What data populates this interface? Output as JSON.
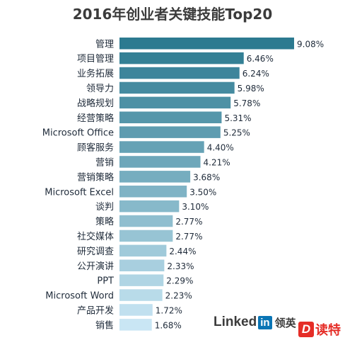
{
  "chart_data": {
    "type": "bar",
    "orientation": "horizontal",
    "title": "2016年创业者关键技能Top20",
    "categories": [
      "管理",
      "项目管理",
      "业务拓展",
      "领导力",
      "战略规划",
      "经营策略",
      "Microsoft Office",
      "顾客服务",
      "营销",
      "营销策略",
      "Microsoft Excel",
      "谈判",
      "策略",
      "社交媒体",
      "研究调查",
      "公开演讲",
      "PPT",
      "Microsoft Word",
      "产品开发",
      "销售"
    ],
    "values": [
      9.08,
      6.46,
      6.24,
      5.98,
      5.78,
      5.31,
      5.25,
      4.4,
      4.21,
      3.68,
      3.5,
      3.1,
      2.77,
      2.77,
      2.44,
      2.33,
      2.29,
      2.23,
      1.72,
      1.68
    ],
    "value_labels": [
      "9.08%",
      "6.46%",
      "6.24%",
      "5.98%",
      "5.78%",
      "5.31%",
      "5.25%",
      "4.40%",
      "4.21%",
      "3.68%",
      "3.50%",
      "3.10%",
      "2.77%",
      "2.77%",
      "2.44%",
      "2.33%",
      "2.29%",
      "2.23%",
      "1.72%",
      "1.68%"
    ],
    "color_dark": "#2c7a90",
    "color_light": "#c9e6f4",
    "grid": false,
    "legend": false
  },
  "brand": {
    "wordmark": "Linked",
    "in": "in",
    "cn": "领英"
  },
  "watermark": {
    "logo": "D",
    "text": "读特"
  }
}
